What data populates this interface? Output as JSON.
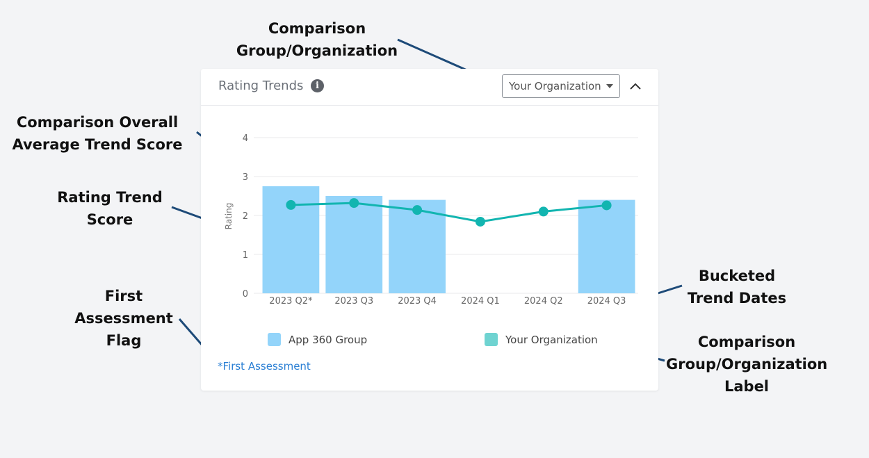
{
  "annotations": {
    "comparison_group": "Comparison\nGroup/Organization",
    "overall_average": "Comparison Overall\nAverage Trend Score",
    "rating_trend_score": "Rating Trend\nScore",
    "first_assessment_flag": "First\nAssessment\nFlag",
    "bucketed_dates": "Bucketed\nTrend Dates",
    "group_label": "Comparison\nGroup/Organization\nLabel"
  },
  "card": {
    "title": "Rating Trends",
    "info_icon": "info-circle-icon",
    "select_value": "Your Organization",
    "collapse_icon": "chevron-up-icon",
    "first_assessment_note": "*First Assessment"
  },
  "colors": {
    "bar": "#93d4fa",
    "line": "#12b5b0",
    "legend_org": "#6fd3d1",
    "arrow": "#1d4a78",
    "link": "#2a7fd4"
  },
  "chart_data": {
    "type": "bar",
    "categories": [
      "2023 Q2*",
      "2023 Q3",
      "2023 Q4",
      "2024 Q1",
      "2024 Q2",
      "2024 Q3"
    ],
    "ylabel": "Rating",
    "ylim": [
      0,
      4
    ],
    "yticks": [
      0,
      1,
      2,
      3,
      4
    ],
    "grid": true,
    "legend_position": "bottom",
    "series": [
      {
        "name": "App 360 Group",
        "type": "bar",
        "values": [
          2.75,
          2.5,
          2.4,
          null,
          null,
          2.4
        ]
      },
      {
        "name": "Your Organization",
        "type": "line",
        "values": [
          2.27,
          2.32,
          2.14,
          1.84,
          2.1,
          2.26
        ]
      }
    ]
  }
}
